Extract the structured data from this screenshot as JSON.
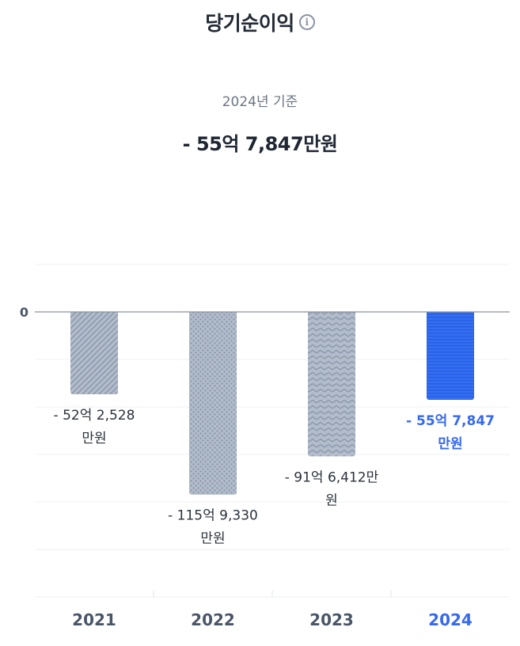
{
  "header": {
    "title": "당기순이익",
    "info_icon": "info-circle-icon",
    "basis_label": "2024년 기준",
    "headline_value": "- 55억 7,847만원"
  },
  "colors": {
    "bar_past": "#b2bccb",
    "bar_past_pattern": "#8d99ad",
    "bar_current": "#3270f0",
    "bar_current_pattern": "#2a5ee8",
    "label_current": "#3569ee",
    "label_past": "#2b323c",
    "axis_label": "#4a5567",
    "zero_line": "#8a929e",
    "grid": "#edf0f3"
  },
  "chart_data": {
    "type": "bar",
    "unit": "만원",
    "categories": [
      "2021",
      "2022",
      "2023",
      "2024"
    ],
    "values": [
      -522528,
      -1159330,
      -916412,
      -557847
    ],
    "data_labels": [
      [
        "- 52억 2,528",
        "만원"
      ],
      [
        "- 115억 9,330",
        "만원"
      ],
      [
        "- 91억 6,412만",
        "원"
      ],
      [
        "- 55억 7,847",
        "만원"
      ]
    ],
    "highlight_index": 3,
    "y_tick_labels": [
      "0"
    ],
    "ylim": [
      -1800000,
      300000
    ],
    "grid": true,
    "bar_patterns": [
      "diagonal",
      "dots",
      "zigzag",
      "horizontal"
    ]
  }
}
